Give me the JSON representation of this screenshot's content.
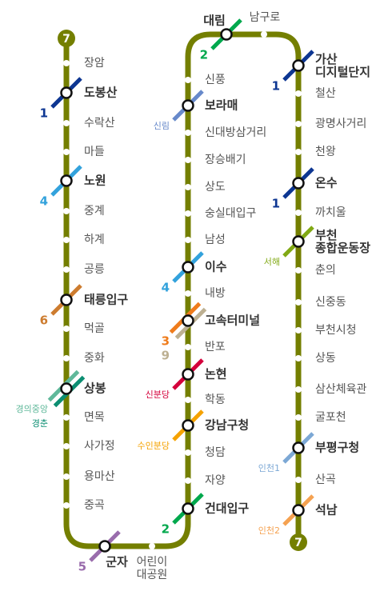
{
  "line": "7",
  "line_color": "#747f00",
  "stations": [
    {
      "name": "장암"
    },
    {
      "name": "도봉산",
      "transfers": [
        {
          "label": "1",
          "color": "#0d3692"
        }
      ]
    },
    {
      "name": "수락산"
    },
    {
      "name": "마들"
    },
    {
      "name": "노원",
      "transfers": [
        {
          "label": "4",
          "color": "#33a2dc"
        }
      ]
    },
    {
      "name": "중계"
    },
    {
      "name": "하계"
    },
    {
      "name": "공릉"
    },
    {
      "name": "태릉입구",
      "transfers": [
        {
          "label": "6",
          "color": "#cd7c2f"
        }
      ]
    },
    {
      "name": "먹골"
    },
    {
      "name": "중화"
    },
    {
      "name": "상봉",
      "transfers": [
        {
          "label": "경의중앙",
          "color": "#5fb89a"
        },
        {
          "label": "경춘",
          "color": "#0c8e72"
        }
      ]
    },
    {
      "name": "면목"
    },
    {
      "name": "사가정"
    },
    {
      "name": "용마산"
    },
    {
      "name": "중곡"
    },
    {
      "name": "군자",
      "transfers": [
        {
          "label": "5",
          "color": "#996cac"
        }
      ]
    },
    {
      "name": [
        "어린이",
        "대공원"
      ]
    },
    {
      "name": "건대입구",
      "transfers": [
        {
          "label": "2",
          "color": "#00a84d"
        }
      ]
    },
    {
      "name": "자양"
    },
    {
      "name": "청담"
    },
    {
      "name": "강남구청",
      "transfers": [
        {
          "label": "수인분당",
          "color": "#f5a200"
        }
      ]
    },
    {
      "name": "학동"
    },
    {
      "name": "논현",
      "transfers": [
        {
          "label": "신분당",
          "color": "#d4003b"
        }
      ]
    },
    {
      "name": "반포"
    },
    {
      "name": "고속터미널",
      "transfers": [
        {
          "label": "3",
          "color": "#ef7c1c"
        },
        {
          "label": "9",
          "color": "#bdb092"
        }
      ]
    },
    {
      "name": "내방"
    },
    {
      "name": "이수",
      "transfers": [
        {
          "label": "4",
          "color": "#33a2dc"
        }
      ]
    },
    {
      "name": "남성"
    },
    {
      "name": "숭실대입구"
    },
    {
      "name": "상도"
    },
    {
      "name": "장승배기"
    },
    {
      "name": "신대방삼거리"
    },
    {
      "name": "보라매",
      "transfers": [
        {
          "label": "신림",
          "color": "#6789ca"
        }
      ]
    },
    {
      "name": "신풍"
    },
    {
      "name": "대림",
      "transfers": [
        {
          "label": "2",
          "color": "#00a84d"
        }
      ]
    },
    {
      "name": "남구로"
    },
    {
      "name": [
        "가산",
        "디지털단지"
      ],
      "transfers": [
        {
          "label": "1",
          "color": "#0d3692"
        }
      ]
    },
    {
      "name": "철산"
    },
    {
      "name": "광명사거리"
    },
    {
      "name": "천왕"
    },
    {
      "name": "온수",
      "transfers": [
        {
          "label": "1",
          "color": "#0d3692"
        }
      ]
    },
    {
      "name": "까치울"
    },
    {
      "name": [
        "부천",
        "종합운동장"
      ],
      "transfers": [
        {
          "label": "서해",
          "color": "#81a914"
        }
      ]
    },
    {
      "name": "춘의"
    },
    {
      "name": "신중동"
    },
    {
      "name": "부천시청"
    },
    {
      "name": "상동"
    },
    {
      "name": "삼산체육관"
    },
    {
      "name": "굴포천"
    },
    {
      "name": "부평구청",
      "transfers": [
        {
          "label": "인천1",
          "color": "#7ca8d5"
        }
      ]
    },
    {
      "name": "산곡"
    },
    {
      "name": "석남",
      "transfers": [
        {
          "label": "인천2",
          "color": "#f5a251"
        }
      ]
    }
  ]
}
